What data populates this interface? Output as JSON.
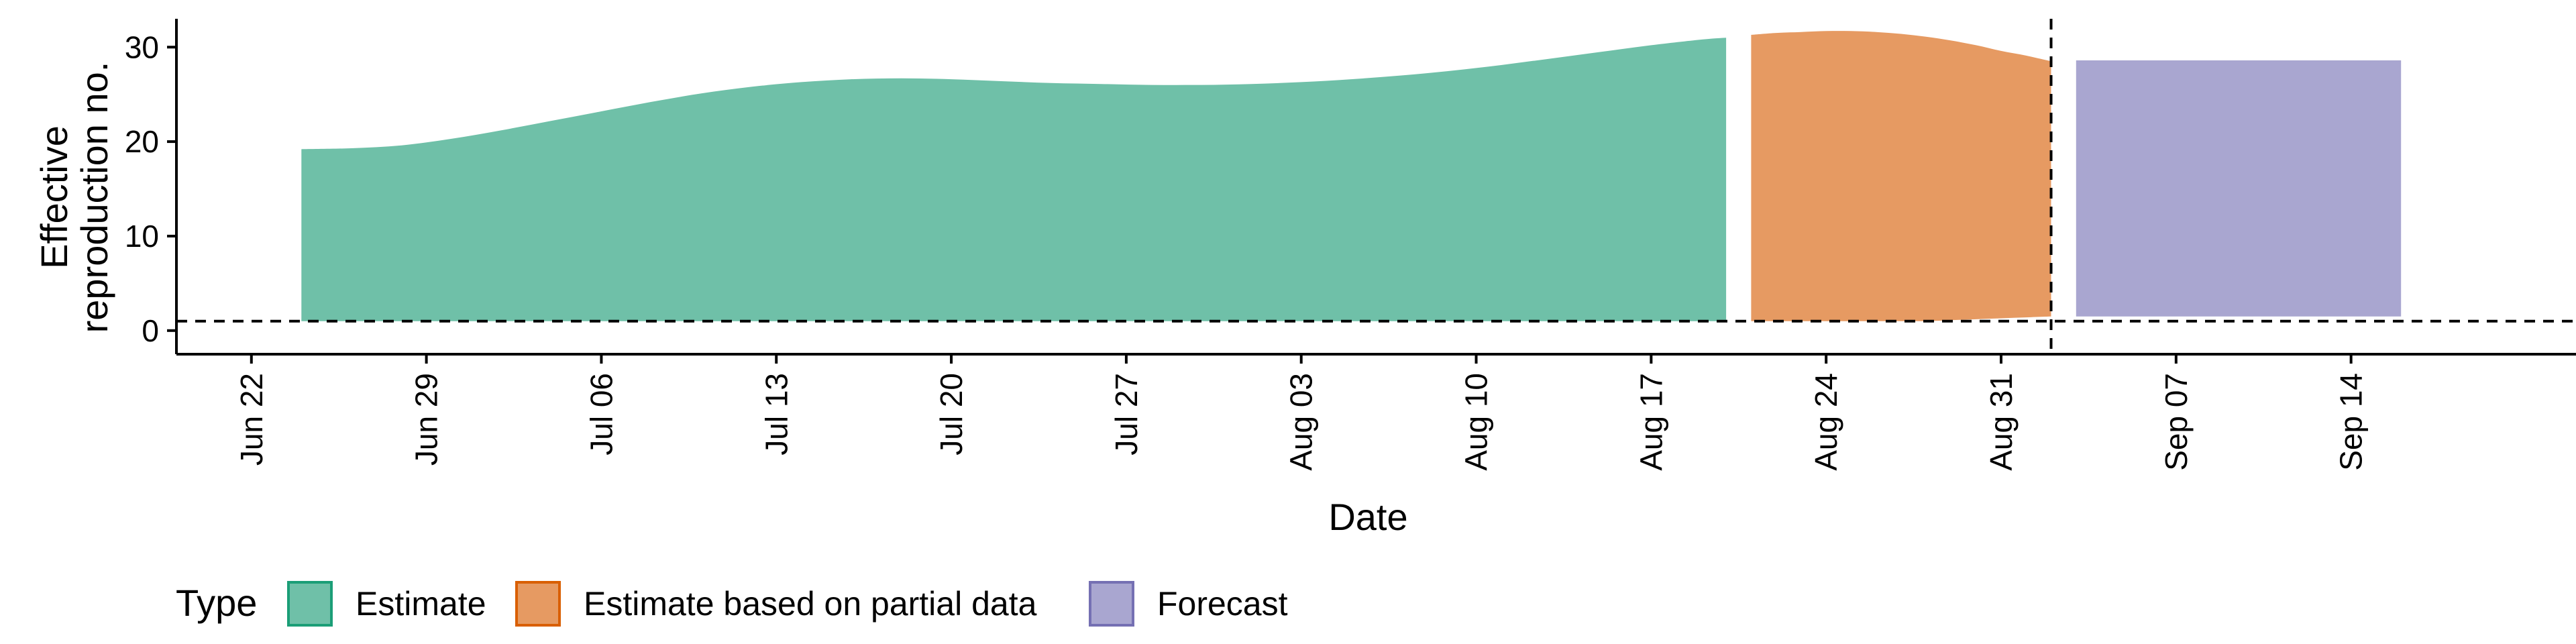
{
  "chart_data": {
    "type": "area",
    "title": "",
    "xlabel": "Date",
    "ylabel": "Effective reproduction no.",
    "ylabel_lines": [
      "Effective",
      "reproduction no."
    ],
    "ylim": [
      -2.5,
      33
    ],
    "yticks": [
      0,
      10,
      20,
      30
    ],
    "xlim": [
      "2020-06-19",
      "2020-09-23"
    ],
    "xticks": [
      {
        "date": "2020-06-22",
        "label": "Jun 22"
      },
      {
        "date": "2020-06-29",
        "label": "Jun 29"
      },
      {
        "date": "2020-07-06",
        "label": "Jul 06"
      },
      {
        "date": "2020-07-13",
        "label": "Jul 13"
      },
      {
        "date": "2020-07-20",
        "label": "Jul 20"
      },
      {
        "date": "2020-07-27",
        "label": "Jul 27"
      },
      {
        "date": "2020-08-03",
        "label": "Aug 03"
      },
      {
        "date": "2020-08-10",
        "label": "Aug 10"
      },
      {
        "date": "2020-08-17",
        "label": "Aug 17"
      },
      {
        "date": "2020-08-24",
        "label": "Aug 24"
      },
      {
        "date": "2020-08-31",
        "label": "Aug 31"
      },
      {
        "date": "2020-09-07",
        "label": "Sep 07"
      },
      {
        "date": "2020-09-14",
        "label": "Sep 14"
      }
    ],
    "reference_hline": 1,
    "reference_vline": "2020-09-02",
    "grid": false,
    "legend_position": "bottom",
    "legend_title": "Type",
    "series": [
      {
        "name": "Estimate",
        "fill": "#6fc0a8",
        "border": "#1b9e77",
        "x": [
          "2020-06-24",
          "2020-06-26",
          "2020-06-28",
          "2020-06-30",
          "2020-07-02",
          "2020-07-04",
          "2020-07-06",
          "2020-07-08",
          "2020-07-10",
          "2020-07-12",
          "2020-07-14",
          "2020-07-16",
          "2020-07-18",
          "2020-07-20",
          "2020-07-22",
          "2020-07-24",
          "2020-07-26",
          "2020-07-28",
          "2020-07-30",
          "2020-08-01",
          "2020-08-03",
          "2020-08-05",
          "2020-08-07",
          "2020-08-09",
          "2020-08-11",
          "2020-08-13",
          "2020-08-15",
          "2020-08-17",
          "2020-08-19",
          "2020-08-20"
        ],
        "upper": [
          19.2,
          19.3,
          19.6,
          20.3,
          21.2,
          22.2,
          23.2,
          24.2,
          25.1,
          25.8,
          26.3,
          26.6,
          26.7,
          26.6,
          26.4,
          26.2,
          26.1,
          26.0,
          26.0,
          26.1,
          26.3,
          26.6,
          27.0,
          27.5,
          28.1,
          28.8,
          29.5,
          30.2,
          30.8,
          31.0
        ],
        "lower": [
          1.0,
          1.0,
          1.0,
          1.0,
          1.0,
          1.0,
          1.0,
          1.0,
          1.0,
          1.0,
          1.0,
          1.0,
          1.0,
          1.0,
          1.0,
          1.0,
          1.0,
          1.0,
          1.0,
          1.0,
          1.0,
          1.0,
          1.0,
          1.0,
          1.0,
          1.0,
          1.0,
          1.0,
          1.0,
          1.0
        ]
      },
      {
        "name": "Estimate based on partial data",
        "fill": "#e69a62",
        "border": "#d95f02",
        "x": [
          "2020-08-21",
          "2020-08-22",
          "2020-08-23",
          "2020-08-24",
          "2020-08-25",
          "2020-08-26",
          "2020-08-27",
          "2020-08-28",
          "2020-08-29",
          "2020-08-30",
          "2020-08-31",
          "2020-09-01",
          "2020-09-02"
        ],
        "upper": [
          31.3,
          31.5,
          31.6,
          31.7,
          31.7,
          31.6,
          31.4,
          31.1,
          30.7,
          30.2,
          29.6,
          29.1,
          28.5
        ],
        "lower": [
          1.0,
          1.0,
          1.0,
          1.0,
          1.0,
          1.0,
          1.0,
          1.0,
          1.1,
          1.2,
          1.3,
          1.4,
          1.5
        ]
      },
      {
        "name": "Forecast",
        "fill": "#a9a6d0",
        "border": "#7570b3",
        "x": [
          "2020-09-03",
          "2020-09-16"
        ],
        "upper": [
          28.6,
          28.6
        ],
        "lower": [
          1.5,
          1.5
        ]
      }
    ]
  }
}
